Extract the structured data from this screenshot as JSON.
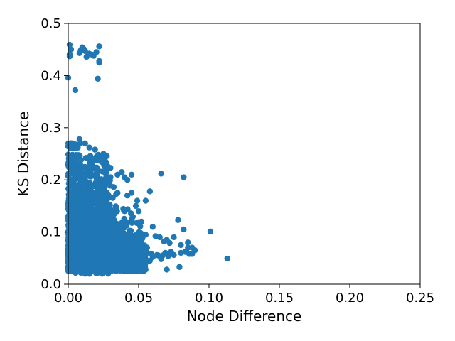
{
  "chart_data": {
    "type": "scatter",
    "xlabel": "Node Difference",
    "ylabel": "KS Distance",
    "xlim": [
      0.0,
      0.25
    ],
    "ylim": [
      0.0,
      0.5
    ],
    "x_ticks": [
      "0.00",
      "0.05",
      "0.10",
      "0.15",
      "0.20",
      "0.25"
    ],
    "y_ticks": [
      "0.0",
      "0.1",
      "0.2",
      "0.3",
      "0.4",
      "0.5"
    ],
    "x_tick_values": [
      0.0,
      0.05,
      0.1,
      0.15,
      0.2,
      0.25
    ],
    "y_tick_values": [
      0.0,
      0.1,
      0.2,
      0.3,
      0.4,
      0.5
    ],
    "grid": false,
    "marker_color": "#1f77b4",
    "series": [
      {
        "x": [
          0.001,
          0.002,
          0.001,
          0.0,
          0.008,
          0.01,
          0.012,
          0.015,
          0.018,
          0.02,
          0.022,
          0.022,
          0.013,
          0.009,
          0.001,
          0.005,
          0.021,
          0.022,
          0.017,
          0.011,
          0.002,
          0.005,
          0.008,
          0.012,
          0.015,
          0.019,
          0.025,
          0.028,
          0.03,
          0.035,
          0.038,
          0.04,
          0.042,
          0.045,
          0.048,
          0.05,
          0.066,
          0.082,
          0.058,
          0.055,
          0.052,
          0.035,
          0.03,
          0.025,
          0.042,
          0.045,
          0.049,
          0.06,
          0.062,
          0.065,
          0.068,
          0.07,
          0.072,
          0.075,
          0.078,
          0.08,
          0.082,
          0.085,
          0.088,
          0.09,
          0.101,
          0.113,
          0.07,
          0.079,
          0.066,
          0.06,
          0.056,
          0.053,
          0.083,
          0.085,
          0.086,
          0.073,
          0.069,
          0.064,
          0.058,
          0.048,
          0.044,
          0.04,
          0.037,
          0.033,
          0.03,
          0.027,
          0.024,
          0.021,
          0.018,
          0.015,
          0.012,
          0.009,
          0.006,
          0.003,
          0.004,
          0.007,
          0.01,
          0.013,
          0.016,
          0.019,
          0.022,
          0.026,
          0.029,
          0.032,
          0.036,
          0.039,
          0.043,
          0.047,
          0.051,
          0.055,
          0.059,
          0.063,
          0.067,
          0.071,
          0.075,
          0.08,
          0.084,
          0.088,
          0.002,
          0.005,
          0.008,
          0.011,
          0.014,
          0.017,
          0.02,
          0.023,
          0.026,
          0.029,
          0.032,
          0.035,
          0.038,
          0.041,
          0.044,
          0.047,
          0.05,
          0.053,
          0.056,
          0.003,
          0.006,
          0.009,
          0.012,
          0.015,
          0.018,
          0.021,
          0.024,
          0.027,
          0.03,
          0.033,
          0.036,
          0.039,
          0.042,
          0.001,
          0.004,
          0.007,
          0.01,
          0.013,
          0.016,
          0.019,
          0.022,
          0.025,
          0.028,
          0.031,
          0.034,
          0.037,
          0.002,
          0.006,
          0.01,
          0.014,
          0.018,
          0.022,
          0.026,
          0.03,
          0.034,
          0.038,
          0.042,
          0.046,
          0.05,
          0.054,
          0.001,
          0.003,
          0.005,
          0.007,
          0.009,
          0.011,
          0.013,
          0.015,
          0.017,
          0.019,
          0.021,
          0.023,
          0.004,
          0.008,
          0.012,
          0.016,
          0.02,
          0.024,
          0.028,
          0.032,
          0.036,
          0.04,
          0.044,
          0.048,
          0.052,
          0.056
        ],
        "y": [
          0.459,
          0.45,
          0.437,
          0.396,
          0.443,
          0.454,
          0.447,
          0.442,
          0.438,
          0.445,
          0.456,
          0.425,
          0.436,
          0.449,
          0.441,
          0.372,
          0.394,
          0.428,
          0.44,
          0.451,
          0.27,
          0.268,
          0.278,
          0.27,
          0.262,
          0.258,
          0.25,
          0.225,
          0.223,
          0.21,
          0.215,
          0.205,
          0.2,
          0.21,
          0.15,
          0.14,
          0.212,
          0.205,
          0.178,
          0.16,
          0.12,
          0.175,
          0.205,
          0.24,
          0.17,
          0.175,
          0.16,
          0.11,
          0.092,
          0.09,
          0.082,
          0.085,
          0.079,
          0.09,
          0.123,
          0.075,
          0.105,
          0.08,
          0.07,
          0.065,
          0.101,
          0.049,
          0.028,
          0.033,
          0.048,
          0.052,
          0.06,
          0.058,
          0.062,
          0.07,
          0.058,
          0.062,
          0.06,
          0.055,
          0.045,
          0.04,
          0.055,
          0.035,
          0.04,
          0.037,
          0.03,
          0.025,
          0.02,
          0.022,
          0.025,
          0.02,
          0.02,
          0.022,
          0.025,
          0.03,
          0.15,
          0.18,
          0.2,
          0.16,
          0.14,
          0.12,
          0.11,
          0.1,
          0.09,
          0.085,
          0.08,
          0.075,
          0.07,
          0.068,
          0.065,
          0.06,
          0.058,
          0.056,
          0.055,
          0.054,
          0.056,
          0.06,
          0.062,
          0.058,
          0.2,
          0.22,
          0.21,
          0.19,
          0.18,
          0.17,
          0.16,
          0.15,
          0.14,
          0.13,
          0.12,
          0.11,
          0.1,
          0.095,
          0.09,
          0.085,
          0.08,
          0.075,
          0.07,
          0.1,
          0.12,
          0.13,
          0.14,
          0.13,
          0.12,
          0.11,
          0.1,
          0.09,
          0.085,
          0.08,
          0.075,
          0.07,
          0.065,
          0.06,
          0.07,
          0.08,
          0.09,
          0.1,
          0.08,
          0.07,
          0.06,
          0.055,
          0.05,
          0.048,
          0.045,
          0.04,
          0.04,
          0.045,
          0.05,
          0.055,
          0.06,
          0.065,
          0.06,
          0.055,
          0.05,
          0.048,
          0.045,
          0.042,
          0.04,
          0.038,
          0.03,
          0.035,
          0.04,
          0.045,
          0.05,
          0.06,
          0.07,
          0.08,
          0.09,
          0.1,
          0.11,
          0.12,
          0.24,
          0.23,
          0.21,
          0.19,
          0.17,
          0.15,
          0.13,
          0.11,
          0.09,
          0.08,
          0.07,
          0.06,
          0.05,
          0.045
        ]
      }
    ]
  }
}
